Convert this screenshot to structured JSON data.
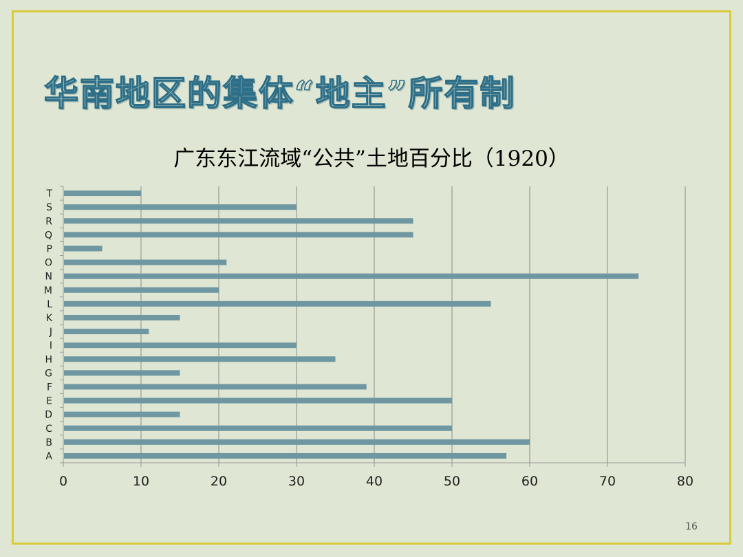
{
  "slide": {
    "title": "华南地区的集体“地主”所有制",
    "page_number": "16"
  },
  "chart_data": {
    "type": "bar",
    "orientation": "horizontal",
    "title": "广东东江流域“公共”土地百分比（1920）",
    "categories": [
      "A",
      "B",
      "C",
      "D",
      "E",
      "F",
      "G",
      "H",
      "I",
      "J",
      "K",
      "L",
      "M",
      "N",
      "O",
      "P",
      "Q",
      "R",
      "S",
      "T"
    ],
    "values": [
      57,
      60,
      50,
      15,
      50,
      39,
      15,
      35,
      30,
      11,
      15,
      55,
      20,
      74,
      21,
      5,
      45,
      45,
      30,
      10
    ],
    "xlim": [
      0,
      80
    ],
    "xticks": [
      0,
      10,
      20,
      30,
      40,
      50,
      60,
      70,
      80
    ],
    "grid": true,
    "legend": "none",
    "colors": {
      "bar": "#6f97a1",
      "grid": "#8a8a8a",
      "axis": "#9a9a9a"
    }
  }
}
